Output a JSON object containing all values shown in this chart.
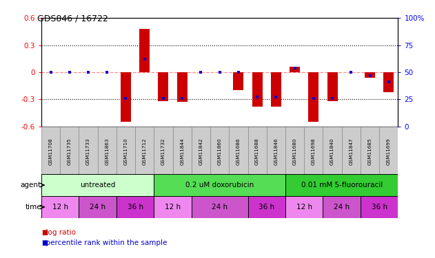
{
  "title": "GDS846 / 16722",
  "samples": [
    "GSM11708",
    "GSM11735",
    "GSM11733",
    "GSM11863",
    "GSM11710",
    "GSM11712",
    "GSM11732",
    "GSM11844",
    "GSM11842",
    "GSM11860",
    "GSM11686",
    "GSM11688",
    "GSM11846",
    "GSM11680",
    "GSM11698",
    "GSM11840",
    "GSM11847",
    "GSM11685",
    "GSM11699"
  ],
  "log_ratio": [
    0,
    0,
    0,
    0,
    -0.55,
    0.48,
    -0.32,
    -0.33,
    0,
    0,
    -0.2,
    -0.38,
    -0.38,
    0.06,
    -0.55,
    -0.32,
    0,
    -0.06,
    -0.22
  ],
  "percentile_rank": [
    50,
    50,
    50,
    50,
    26,
    62,
    26,
    26,
    50,
    50,
    50,
    27,
    27,
    54,
    26,
    26,
    50,
    47,
    41
  ],
  "ylim": [
    -0.6,
    0.6
  ],
  "y2lim": [
    0,
    100
  ],
  "yticks": [
    -0.6,
    -0.3,
    0,
    0.3,
    0.6
  ],
  "y2ticks": [
    0,
    25,
    50,
    75,
    100
  ],
  "bar_color": "#cc0000",
  "dot_color": "#0000cc",
  "dashed_zero_color": "#ff8888",
  "agent_groups": [
    {
      "label": "untreated",
      "start": 0,
      "end": 6,
      "color": "#ccffcc"
    },
    {
      "label": "0.2 uM doxorubicin",
      "start": 6,
      "end": 13,
      "color": "#55dd55"
    },
    {
      "label": "0.01 mM 5-fluorouracil",
      "start": 13,
      "end": 19,
      "color": "#33cc33"
    }
  ],
  "time_groups": [
    {
      "label": "12 h",
      "start": 0,
      "end": 2,
      "color": "#ee88ee"
    },
    {
      "label": "24 h",
      "start": 2,
      "end": 4,
      "color": "#cc55cc"
    },
    {
      "label": "36 h",
      "start": 4,
      "end": 6,
      "color": "#cc33cc"
    },
    {
      "label": "12 h",
      "start": 6,
      "end": 8,
      "color": "#ee88ee"
    },
    {
      "label": "24 h",
      "start": 8,
      "end": 11,
      "color": "#cc55cc"
    },
    {
      "label": "36 h",
      "start": 11,
      "end": 13,
      "color": "#cc33cc"
    },
    {
      "label": "12 h",
      "start": 13,
      "end": 15,
      "color": "#ee88ee"
    },
    {
      "label": "24 h",
      "start": 15,
      "end": 17,
      "color": "#cc55cc"
    },
    {
      "label": "36 h",
      "start": 17,
      "end": 19,
      "color": "#cc33cc"
    }
  ],
  "sample_box_color": "#cccccc",
  "background_color": "#ffffff"
}
